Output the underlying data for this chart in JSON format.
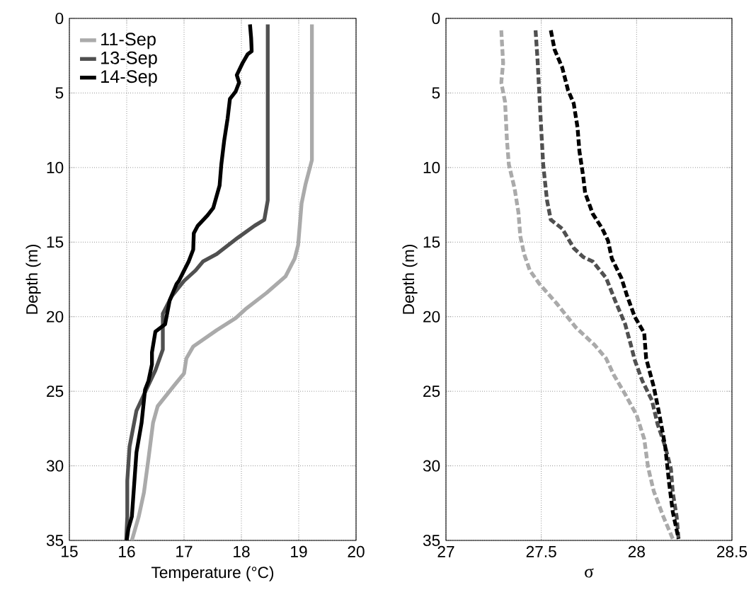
{
  "chart_data": [
    {
      "type": "line",
      "xlabel": "Temperature (°C)",
      "ylabel": "Depth (m)",
      "xlim": [
        15,
        20
      ],
      "ylim": [
        35,
        0
      ],
      "xticks": [
        15,
        16,
        17,
        18,
        19,
        20
      ],
      "yticks": [
        0,
        5,
        10,
        15,
        20,
        25,
        30,
        35
      ],
      "grid": true,
      "legend": "top left",
      "line_style": "solid",
      "series": [
        {
          "name": "11-Sep",
          "color": "#aaaaaa",
          "x": [
            19.23,
            19.23,
            19.12,
            19.05,
            18.99,
            18.93,
            18.77,
            18.44,
            18.07,
            17.9,
            17.57,
            17.16,
            17.04,
            17.0,
            16.83,
            16.54,
            16.46,
            16.38,
            16.3,
            16.21,
            16.09
          ],
          "values": [
            0.4,
            9.5,
            11.1,
            12.4,
            15.2,
            16.1,
            17.3,
            18.4,
            19.5,
            20.1,
            20.9,
            22.0,
            22.8,
            23.8,
            24.6,
            26.0,
            27.1,
            29.5,
            31.8,
            33.4,
            35
          ]
        },
        {
          "name": "13-Sep",
          "color": "#505050",
          "x": [
            18.46,
            18.46,
            18.4,
            18.23,
            17.94,
            17.57,
            17.33,
            17.2,
            17.0,
            16.79,
            16.63,
            16.63,
            16.5,
            16.34,
            16.17,
            16.05,
            16.01,
            16.01,
            15.99
          ],
          "values": [
            0.4,
            12.2,
            13.5,
            13.9,
            14.7,
            15.8,
            16.3,
            16.9,
            17.6,
            18.6,
            19.8,
            22.2,
            23.6,
            24.9,
            26.3,
            28.7,
            31.0,
            33.4,
            35
          ]
        },
        {
          "name": "14-Sep",
          "color": "#000000",
          "x": [
            18.15,
            18.17,
            18.18,
            18.11,
            18.02,
            17.92,
            17.96,
            17.9,
            17.8,
            17.76,
            17.7,
            17.65,
            17.62,
            17.51,
            17.41,
            17.24,
            17.17,
            17.16,
            17.08,
            16.91,
            16.87,
            16.75,
            16.67,
            16.5,
            16.44,
            16.44,
            16.38,
            16.32,
            16.26,
            16.17,
            16.09,
            16.03,
            16.0
          ],
          "values": [
            0.4,
            1.3,
            2.2,
            2.4,
            3.0,
            3.8,
            4.3,
            4.9,
            5.4,
            6.7,
            8.2,
            9.8,
            11.2,
            12.7,
            13.2,
            13.9,
            14.4,
            15.5,
            16.3,
            17.6,
            17.8,
            18.9,
            20.5,
            21.0,
            22.4,
            23.2,
            24.3,
            24.9,
            27.1,
            29.1,
            33.4,
            34.2,
            35
          ]
        }
      ]
    },
    {
      "type": "line",
      "xlabel": "σ",
      "ylabel": "Depth (m)",
      "xlim": [
        27,
        28.5
      ],
      "ylim": [
        35,
        0
      ],
      "xticks": [
        27,
        27.5,
        28,
        28.5
      ],
      "yticks": [
        0,
        5,
        10,
        15,
        20,
        25,
        30,
        35
      ],
      "grid": true,
      "line_style": "dashed",
      "series": [
        {
          "color": "#aaaaaa",
          "x": [
            27.29,
            27.3,
            27.29,
            27.31,
            27.32,
            27.33,
            27.36,
            27.38,
            27.39,
            27.41,
            27.44,
            27.49,
            27.58,
            27.68,
            27.78,
            27.84,
            27.88,
            27.94,
            28.0,
            28.04,
            28.06,
            28.09,
            28.14,
            28.19
          ],
          "values": [
            0.8,
            3.0,
            4.3,
            5.6,
            8.2,
            9.8,
            11.4,
            13.0,
            14.6,
            15.8,
            16.9,
            17.8,
            19.1,
            20.7,
            21.9,
            22.8,
            23.9,
            25.2,
            26.6,
            28.2,
            30.1,
            31.7,
            33.4,
            34.9
          ]
        },
        {
          "color": "#505050",
          "x": [
            27.47,
            27.48,
            27.49,
            27.5,
            27.51,
            27.53,
            27.55,
            27.61,
            27.67,
            27.72,
            27.77,
            27.84,
            27.89,
            27.94,
            27.97,
            27.99,
            28.03,
            28.08,
            28.11,
            28.15,
            28.18,
            28.19,
            28.21,
            28.22
          ],
          "values": [
            0.8,
            2.7,
            5.1,
            7.5,
            9.8,
            12.2,
            13.5,
            14.1,
            15.4,
            16.0,
            16.3,
            17.4,
            19.0,
            20.5,
            21.9,
            22.9,
            24.3,
            25.6,
            27.2,
            28.7,
            30.2,
            31.8,
            33.4,
            34.9
          ]
        },
        {
          "color": "#000000",
          "x": [
            27.55,
            27.57,
            27.61,
            27.64,
            27.67,
            27.69,
            27.7,
            27.72,
            27.73,
            27.77,
            27.82,
            27.85,
            27.87,
            27.92,
            27.95,
            27.99,
            28.04,
            28.05,
            28.09,
            28.12,
            28.15,
            28.17,
            28.19,
            28.22
          ],
          "values": [
            0.8,
            2.1,
            3.3,
            4.8,
            5.7,
            7.3,
            8.9,
            10.6,
            11.7,
            13.1,
            14.1,
            14.9,
            16.1,
            17.4,
            18.6,
            20.0,
            21.1,
            22.8,
            24.7,
            26.6,
            28.7,
            31.1,
            33.1,
            34.9
          ]
        }
      ]
    }
  ]
}
